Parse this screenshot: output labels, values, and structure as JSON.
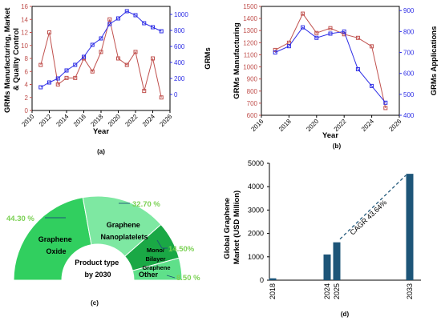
{
  "colors": {
    "series_a": "#c0504d",
    "series_b": "#2e2ee6",
    "bar": "#1d5578",
    "arc_dark": "#1aa845",
    "arc_mid": "#31cf5f",
    "arc_light": "#5fe08a",
    "arc_pale": "#7ee8a2",
    "pct": "#7bd154",
    "dash": "#1d5578"
  },
  "chart_data": [
    {
      "panel": "(a)",
      "type": "line",
      "xlabel": "Year",
      "ylabel_left": "GRMs Manufacturing, Market & Quality Control",
      "ylabel_right": "GRMs",
      "xlim": [
        2010,
        2026
      ],
      "ylim_left": [
        0,
        16
      ],
      "ylim_right": [
        -200,
        1100
      ],
      "x_ticks": [
        2010,
        2012,
        2014,
        2016,
        2018,
        2020,
        2022,
        2024,
        2026
      ],
      "y_ticks_left": [
        0,
        2,
        4,
        6,
        8,
        10,
        12,
        14,
        16
      ],
      "y_ticks_right": [
        0,
        200,
        400,
        600,
        800,
        1000
      ],
      "grid": false,
      "series": [
        {
          "axis": "left",
          "color": "#c0504d",
          "marker": "square",
          "x": [
            2011,
            2012,
            2013,
            2014,
            2015,
            2016,
            2017,
            2018,
            2019,
            2020,
            2021,
            2022,
            2023,
            2024,
            2025
          ],
          "values": [
            7,
            12,
            4,
            5,
            5,
            8,
            6,
            9,
            14,
            8,
            7,
            9,
            3,
            8,
            2
          ]
        },
        {
          "axis": "right",
          "color": "#2e2ee6",
          "marker": "square",
          "x": [
            2011,
            2012,
            2013,
            2014,
            2015,
            2016,
            2017,
            2018,
            2019,
            2020,
            2021,
            2022,
            2023,
            2024,
            2025
          ],
          "values": [
            90,
            150,
            200,
            300,
            370,
            470,
            620,
            700,
            880,
            950,
            1040,
            990,
            890,
            840,
            790
          ]
        }
      ]
    },
    {
      "panel": "(b)",
      "type": "line",
      "xlabel": "Year",
      "ylabel_left": "GRMs Manufacturing",
      "ylabel_right": "GRMs Applications",
      "xlim": [
        2016,
        2026
      ],
      "ylim_left": [
        600,
        1500
      ],
      "ylim_right": [
        400,
        920
      ],
      "x_ticks": [
        2016,
        2018,
        2020,
        2022,
        2024,
        2026
      ],
      "y_ticks_left": [
        600,
        700,
        800,
        900,
        1000,
        1100,
        1200,
        1300,
        1400,
        1500
      ],
      "y_ticks_right": [
        400,
        500,
        600,
        700,
        800,
        900
      ],
      "grid": false,
      "series": [
        {
          "axis": "left",
          "color": "#c0504d",
          "marker": "square",
          "x": [
            2017,
            2018,
            2019,
            2020,
            2021,
            2022,
            2023,
            2024,
            2025
          ],
          "values": [
            1140,
            1200,
            1440,
            1280,
            1320,
            1270,
            1240,
            1170,
            660
          ]
        },
        {
          "axis": "right",
          "color": "#2e2ee6",
          "marker": "square",
          "x": [
            2017,
            2018,
            2019,
            2020,
            2021,
            2022,
            2023,
            2024,
            2025
          ],
          "values": [
            700,
            730,
            820,
            770,
            790,
            800,
            620,
            540,
            460
          ]
        }
      ]
    },
    {
      "panel": "(c)",
      "type": "pie",
      "shape": "half-donut",
      "center_label": "Product type by 2030",
      "slices": [
        {
          "label": "Graphene Oxide",
          "value": 44.3,
          "pct_label": "44.30 %",
          "color": "#31cf5f"
        },
        {
          "label": "Graphene Nanoplatelets",
          "value": 32.7,
          "pct_label": "32.70 %",
          "color": "#7ee8a2"
        },
        {
          "label": "Mono/ Bilayer Graphene",
          "value": 14.5,
          "pct_label": "14.50%",
          "color": "#1aa845"
        },
        {
          "label": "Other",
          "value": 8.5,
          "pct_label": "8.50 %",
          "color": "#5fe08a"
        }
      ]
    },
    {
      "panel": "(d)",
      "type": "bar",
      "ylabel": "Global Graphene Market (USD Million)",
      "ylim": [
        0,
        5000
      ],
      "y_ticks": [
        0,
        1000,
        2000,
        3000,
        4000,
        5000
      ],
      "categories": [
        "2018",
        "2024",
        "2025",
        "2033"
      ],
      "values": [
        80,
        1100,
        1620,
        4550
      ],
      "annotation": "CAGR 43.64%",
      "grid": false
    }
  ]
}
